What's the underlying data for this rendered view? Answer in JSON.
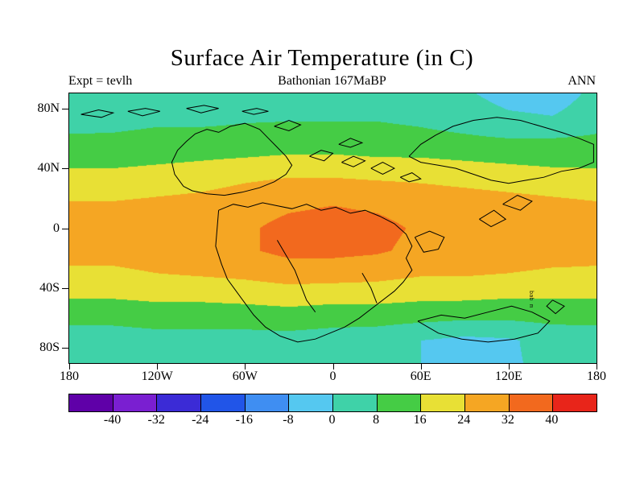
{
  "header": {
    "title": "Surface Air Temperature (in C)",
    "experiment_label": "Expt = tevlh",
    "subtitle": "Bathonian 167MaBP",
    "season": "ANN"
  },
  "map_note": "bab m",
  "chart_data": {
    "type": "heatmap",
    "title": "Surface Air Temperature (in C)",
    "subtitle": "Bathonian 167MaBP",
    "experiment": "tevlh",
    "season": "ANN",
    "units": "C",
    "projection": "equirectangular",
    "lon_range": [
      -180,
      180
    ],
    "lat_range": [
      -90,
      90
    ],
    "grid_on": false,
    "legend_position": "bottom",
    "xticks": [
      {
        "lon": -180,
        "label": "180"
      },
      {
        "lon": -120,
        "label": "120W"
      },
      {
        "lon": -60,
        "label": "60W"
      },
      {
        "lon": 0,
        "label": "0"
      },
      {
        "lon": 60,
        "label": "60E"
      },
      {
        "lon": 120,
        "label": "120E"
      },
      {
        "lon": 180,
        "label": "180"
      }
    ],
    "yticks": [
      {
        "lat": 80,
        "label": "80N"
      },
      {
        "lat": 40,
        "label": "40N"
      },
      {
        "lat": 0,
        "label": "0"
      },
      {
        "lat": -40,
        "label": "40S"
      },
      {
        "lat": -80,
        "label": "80S"
      }
    ],
    "colorbar": {
      "levels": [
        -40,
        -32,
        -24,
        -16,
        -8,
        0,
        8,
        16,
        24,
        32,
        40
      ],
      "labels": [
        "-40",
        "-32",
        "-24",
        "-16",
        "-8",
        "0",
        "8",
        "16",
        "24",
        "32",
        "40"
      ],
      "colors": [
        "#5f00a8",
        "#7a1fd1",
        "#3b2bd6",
        "#2155e8",
        "#3f8ef2",
        "#55c8f0",
        "#3fd2a8",
        "#45cc45",
        "#e8e035",
        "#f5a623",
        "#f2691e",
        "#e8251a"
      ]
    },
    "grid": {
      "lons": [
        -180,
        -150,
        -120,
        -90,
        -60,
        -30,
        0,
        30,
        60,
        90,
        120,
        150,
        180
      ],
      "lats": [
        90,
        75,
        60,
        45,
        30,
        15,
        0,
        -15,
        -30,
        -45,
        -60,
        -75,
        -90
      ],
      "values": [
        [
          2,
          2,
          3,
          3,
          4,
          4,
          4,
          4,
          3,
          1,
          -3,
          -4,
          2
        ],
        [
          4,
          5,
          6,
          6,
          7,
          7,
          7,
          7,
          6,
          4,
          1,
          0,
          4
        ],
        [
          9,
          9,
          10,
          10,
          10,
          11,
          11,
          11,
          10,
          9,
          8,
          8,
          9
        ],
        [
          14,
          14,
          15,
          16,
          17,
          18,
          18,
          17,
          17,
          16,
          15,
          14,
          14
        ],
        [
          20,
          20,
          21,
          22,
          24,
          26,
          26,
          25,
          24,
          23,
          22,
          21,
          20
        ],
        [
          25,
          25,
          26,
          27,
          29,
          31,
          32,
          31,
          29,
          28,
          27,
          26,
          25
        ],
        [
          27,
          27,
          28,
          29,
          31,
          34,
          35,
          34,
          31,
          30,
          29,
          28,
          27
        ],
        [
          26,
          26,
          27,
          28,
          31,
          34,
          34,
          33,
          30,
          29,
          28,
          27,
          26
        ],
        [
          23,
          23,
          24,
          25,
          26,
          28,
          28,
          27,
          25,
          25,
          24,
          23,
          23
        ],
        [
          17,
          17,
          18,
          18,
          19,
          20,
          19,
          19,
          18,
          18,
          17,
          17,
          17
        ],
        [
          10,
          10,
          11,
          11,
          11,
          12,
          11,
          11,
          10,
          9,
          9,
          10,
          10
        ],
        [
          4,
          4,
          5,
          5,
          5,
          5,
          4,
          3,
          0,
          -2,
          -1,
          3,
          4
        ],
        [
          3,
          3,
          4,
          4,
          4,
          4,
          3,
          2,
          0,
          -2,
          -1,
          2,
          3
        ]
      ]
    },
    "coastlines": [
      [
        [
          -172,
          76
        ],
        [
          -160,
          79
        ],
        [
          -150,
          77
        ],
        [
          -158,
          74
        ],
        [
          -172,
          76
        ]
      ],
      [
        [
          -140,
          78
        ],
        [
          -128,
          80
        ],
        [
          -118,
          78
        ],
        [
          -130,
          75
        ],
        [
          -140,
          78
        ]
      ],
      [
        [
          -100,
          80
        ],
        [
          -88,
          82
        ],
        [
          -78,
          80
        ],
        [
          -90,
          77
        ],
        [
          -100,
          80
        ]
      ],
      [
        [
          -62,
          78
        ],
        [
          -52,
          80
        ],
        [
          -44,
          78
        ],
        [
          -54,
          76
        ],
        [
          -62,
          78
        ]
      ],
      [
        [
          -40,
          68
        ],
        [
          -30,
          72
        ],
        [
          -22,
          69
        ],
        [
          -30,
          65
        ],
        [
          -40,
          68
        ]
      ],
      [
        [
          -102,
          28
        ],
        [
          -108,
          36
        ],
        [
          -110,
          44
        ],
        [
          -106,
          52
        ],
        [
          -100,
          58
        ],
        [
          -94,
          63
        ],
        [
          -86,
          66
        ],
        [
          -78,
          64
        ],
        [
          -70,
          68
        ],
        [
          -60,
          70
        ],
        [
          -50,
          66
        ],
        [
          -44,
          60
        ],
        [
          -38,
          54
        ],
        [
          -32,
          48
        ],
        [
          -28,
          42
        ],
        [
          -32,
          36
        ],
        [
          -40,
          31
        ],
        [
          -50,
          27
        ],
        [
          -62,
          24
        ],
        [
          -74,
          22
        ],
        [
          -86,
          23
        ],
        [
          -96,
          25
        ],
        [
          -102,
          28
        ]
      ],
      [
        [
          -16,
          48
        ],
        [
          -8,
          52
        ],
        [
          0,
          50
        ],
        [
          -6,
          45
        ],
        [
          -16,
          48
        ]
      ],
      [
        [
          6,
          44
        ],
        [
          14,
          48
        ],
        [
          22,
          45
        ],
        [
          14,
          41
        ],
        [
          6,
          44
        ]
      ],
      [
        [
          26,
          40
        ],
        [
          34,
          44
        ],
        [
          42,
          40
        ],
        [
          34,
          36
        ],
        [
          26,
          40
        ]
      ],
      [
        [
          4,
          56
        ],
        [
          12,
          60
        ],
        [
          20,
          57
        ],
        [
          12,
          54
        ],
        [
          4,
          56
        ]
      ],
      [
        [
          46,
          34
        ],
        [
          54,
          37
        ],
        [
          60,
          33
        ],
        [
          52,
          31
        ],
        [
          46,
          34
        ]
      ],
      [
        [
          52,
          48
        ],
        [
          60,
          56
        ],
        [
          70,
          62
        ],
        [
          82,
          68
        ],
        [
          96,
          72
        ],
        [
          112,
          74
        ],
        [
          128,
          72
        ],
        [
          142,
          68
        ],
        [
          156,
          64
        ],
        [
          168,
          60
        ],
        [
          178,
          56
        ],
        [
          178,
          44
        ],
        [
          168,
          40
        ],
        [
          156,
          38
        ],
        [
          144,
          34
        ],
        [
          132,
          32
        ],
        [
          120,
          30
        ],
        [
          108,
          32
        ],
        [
          96,
          36
        ],
        [
          84,
          40
        ],
        [
          72,
          42
        ],
        [
          60,
          44
        ],
        [
          52,
          48
        ]
      ],
      [
        [
          116,
          16
        ],
        [
          126,
          22
        ],
        [
          136,
          18
        ],
        [
          128,
          12
        ],
        [
          116,
          16
        ]
      ],
      [
        [
          100,
          6
        ],
        [
          110,
          12
        ],
        [
          118,
          6
        ],
        [
          108,
          1
        ],
        [
          100,
          6
        ]
      ],
      [
        [
          -78,
          12
        ],
        [
          -68,
          16
        ],
        [
          -58,
          14
        ],
        [
          -48,
          17
        ],
        [
          -38,
          15
        ],
        [
          -28,
          13
        ],
        [
          -18,
          16
        ],
        [
          -8,
          12
        ],
        [
          2,
          14
        ],
        [
          12,
          10
        ],
        [
          22,
          12
        ],
        [
          32,
          8
        ],
        [
          42,
          3
        ],
        [
          50,
          -4
        ],
        [
          54,
          -12
        ],
        [
          50,
          -20
        ],
        [
          54,
          -28
        ],
        [
          48,
          -36
        ],
        [
          42,
          -42
        ],
        [
          34,
          -48
        ],
        [
          26,
          -54
        ],
        [
          18,
          -60
        ],
        [
          8,
          -66
        ],
        [
          -2,
          -70
        ],
        [
          -12,
          -74
        ],
        [
          -24,
          -76
        ],
        [
          -36,
          -72
        ],
        [
          -46,
          -66
        ],
        [
          -54,
          -58
        ],
        [
          -60,
          -50
        ],
        [
          -66,
          -42
        ],
        [
          -72,
          -34
        ],
        [
          -76,
          -24
        ],
        [
          -80,
          -12
        ],
        [
          -78,
          12
        ]
      ],
      [
        [
          56,
          -6
        ],
        [
          66,
          -2
        ],
        [
          76,
          -6
        ],
        [
          72,
          -14
        ],
        [
          62,
          -16
        ],
        [
          56,
          -6
        ]
      ],
      [
        [
          58,
          -62
        ],
        [
          74,
          -58
        ],
        [
          90,
          -60
        ],
        [
          106,
          -56
        ],
        [
          122,
          -52
        ],
        [
          136,
          -56
        ],
        [
          148,
          -62
        ],
        [
          140,
          -70
        ],
        [
          124,
          -74
        ],
        [
          106,
          -76
        ],
        [
          88,
          -74
        ],
        [
          72,
          -70
        ],
        [
          58,
          -62
        ]
      ],
      [
        [
          150,
          -48
        ],
        [
          158,
          -52
        ],
        [
          152,
          -57
        ],
        [
          146,
          -52
        ],
        [
          150,
          -48
        ]
      ],
      [
        [
          -38,
          -8
        ],
        [
          -32,
          -18
        ],
        [
          -26,
          -28
        ],
        [
          -22,
          -38
        ],
        [
          -18,
          -48
        ],
        [
          -12,
          -56
        ]
      ],
      [
        [
          20,
          -30
        ],
        [
          26,
          -40
        ],
        [
          30,
          -50
        ]
      ]
    ]
  }
}
